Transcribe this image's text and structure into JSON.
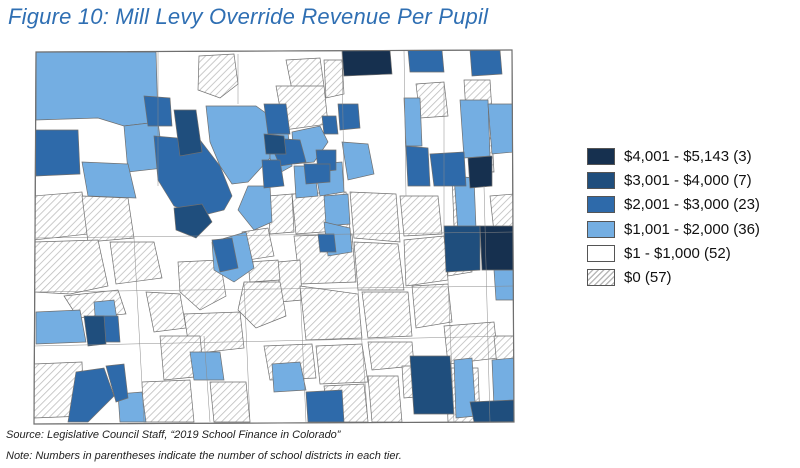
{
  "figure": {
    "title": "Figure 10: Mill Levy Override Revenue Per Pupil"
  },
  "map": {
    "region": "Colorado school districts",
    "boundary_color": "#6f6f6f"
  },
  "legend": {
    "items": [
      {
        "label": "$4,001 - $5,143 (3)",
        "color": "#16304f",
        "range": [
          4001,
          5143
        ],
        "districts": 3
      },
      {
        "label": "$3,001 - $4,000 (7)",
        "color": "#1f4e7d",
        "range": [
          3001,
          4000
        ],
        "districts": 7
      },
      {
        "label": "$2,001 - $3,000 (23)",
        "color": "#2e6aaa",
        "range": [
          2001,
          3000
        ],
        "districts": 23
      },
      {
        "label": "$1,001 - $2,000 (36)",
        "color": "#74aee2",
        "range": [
          1001,
          2000
        ],
        "districts": 36
      },
      {
        "label": "$1 - $1,000 (52)",
        "color": "#ffffff",
        "range": [
          1,
          1000
        ],
        "districts": 52
      },
      {
        "label": "$0 (57)",
        "color": "hatched",
        "range": [
          0,
          0
        ],
        "districts": 57
      }
    ]
  },
  "footnotes": {
    "source": "Source: Legislative Council Staff, “2019 School Finance in Colorado”",
    "note": "Note: Numbers in parentheses indicate the number of school districts in each tier."
  }
}
